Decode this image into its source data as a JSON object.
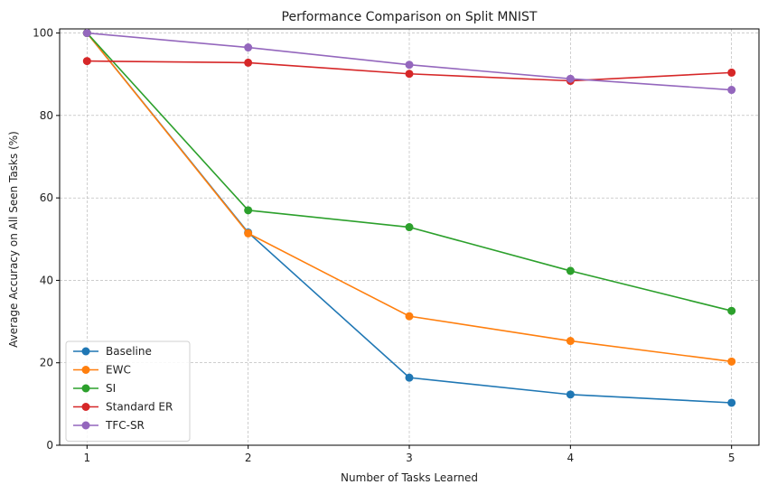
{
  "chart_data": {
    "type": "line",
    "title": "Performance Comparison on Split MNIST",
    "xlabel": "Number of Tasks Learned",
    "ylabel": "Average Accuracy on All Seen Tasks (%)",
    "x": [
      1,
      2,
      3,
      4,
      5
    ],
    "xlim": [
      0.83,
      5.17
    ],
    "ylim": [
      0,
      101
    ],
    "xticks": [
      "1",
      "2",
      "3",
      "4",
      "5"
    ],
    "yticks": [
      0,
      20,
      40,
      60,
      80,
      100
    ],
    "ytick_labels": [
      "0",
      "20",
      "40",
      "60",
      "80",
      "100"
    ],
    "grid": true,
    "legend_position": "lower-left",
    "series": [
      {
        "name": "Baseline",
        "color": "#1f77b4",
        "values": [
          100,
          51.6,
          16.4,
          12.3,
          10.3
        ]
      },
      {
        "name": "EWC",
        "color": "#ff7f0e",
        "values": [
          100,
          51.4,
          31.3,
          25.3,
          20.3
        ]
      },
      {
        "name": "SI",
        "color": "#2ca02c",
        "values": [
          100,
          57.0,
          52.9,
          42.3,
          32.6
        ]
      },
      {
        "name": "Standard ER",
        "color": "#d62728",
        "values": [
          93.2,
          92.8,
          90.1,
          88.4,
          90.4
        ]
      },
      {
        "name": "TFC-SR",
        "color": "#9467bd",
        "values": [
          100,
          96.5,
          92.3,
          88.9,
          86.2
        ]
      }
    ]
  }
}
